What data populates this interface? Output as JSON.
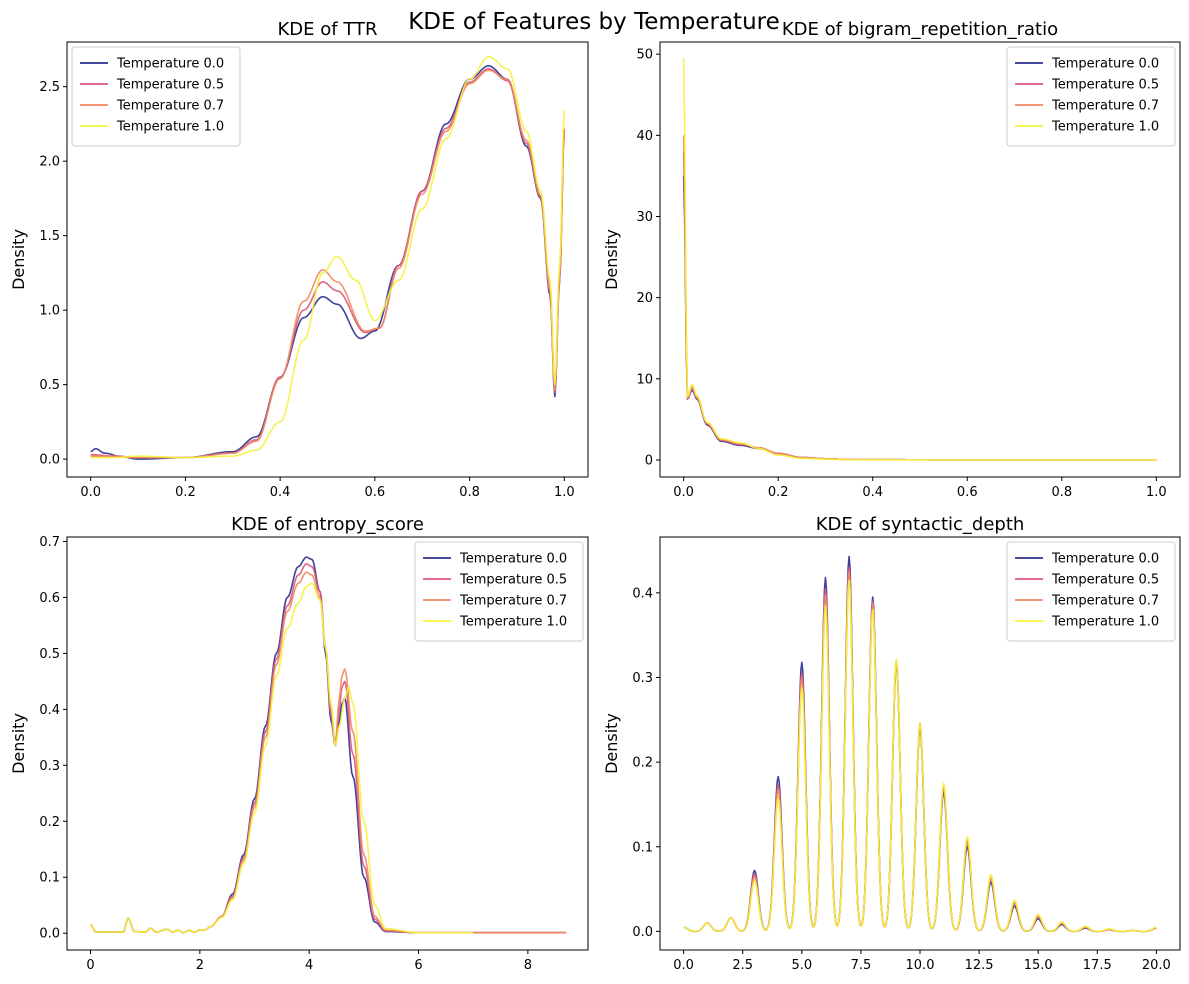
{
  "figure": {
    "title": "KDE of Features by Temperature"
  },
  "colors": {
    "Temperature 0.0": "#2b2f8f",
    "Temperature 0.5": "#d9577a",
    "Temperature 0.7": "#f2875f",
    "Temperature 1.0": "#f4f23a"
  },
  "chart_data": [
    {
      "type": "line",
      "title": "KDE of TTR",
      "xlabel": "",
      "ylabel": "Density",
      "xlim": [
        -0.05,
        1.05
      ],
      "ylim": [
        -0.12,
        2.8
      ],
      "xticks": [
        0.0,
        0.2,
        0.4,
        0.6,
        0.8,
        1.0
      ],
      "xtick_labels": [
        "0.0",
        "0.2",
        "0.4",
        "0.6",
        "0.8",
        "1.0"
      ],
      "yticks": [
        0.0,
        0.5,
        1.0,
        1.5,
        2.0,
        2.5
      ],
      "ytick_labels": [
        "0.0",
        "0.5",
        "1.0",
        "1.5",
        "2.0",
        "2.5"
      ],
      "legend_position": "top-left",
      "series": [
        {
          "name": "Temperature 0.0",
          "x": [
            0,
            0.01,
            0.03,
            0.06,
            0.1,
            0.2,
            0.3,
            0.35,
            0.4,
            0.45,
            0.49,
            0.52,
            0.57,
            0.6,
            0.65,
            0.7,
            0.75,
            0.8,
            0.84,
            0.88,
            0.92,
            0.95,
            0.97,
            0.98,
            0.99,
            1.0
          ],
          "y": [
            0.05,
            0.07,
            0.04,
            0.02,
            0.0,
            0.01,
            0.05,
            0.15,
            0.55,
            0.95,
            1.09,
            1.04,
            0.81,
            0.86,
            1.3,
            1.8,
            2.25,
            2.55,
            2.64,
            2.55,
            2.1,
            1.75,
            1.1,
            0.42,
            1.2,
            2.21
          ]
        },
        {
          "name": "Temperature 0.5",
          "x": [
            0,
            0.05,
            0.1,
            0.2,
            0.3,
            0.35,
            0.4,
            0.45,
            0.49,
            0.52,
            0.58,
            0.61,
            0.65,
            0.7,
            0.75,
            0.8,
            0.84,
            0.88,
            0.92,
            0.95,
            0.97,
            0.98,
            0.99,
            1.0
          ],
          "y": [
            0.03,
            0.02,
            0.01,
            0.01,
            0.04,
            0.13,
            0.55,
            1.0,
            1.19,
            1.13,
            0.85,
            0.88,
            1.3,
            1.8,
            2.22,
            2.53,
            2.62,
            2.54,
            2.12,
            1.76,
            1.12,
            0.45,
            1.2,
            2.2
          ]
        },
        {
          "name": "Temperature 0.7",
          "x": [
            0,
            0.05,
            0.1,
            0.2,
            0.3,
            0.35,
            0.4,
            0.45,
            0.49,
            0.52,
            0.58,
            0.61,
            0.65,
            0.7,
            0.75,
            0.8,
            0.84,
            0.88,
            0.92,
            0.95,
            0.97,
            0.98,
            0.99,
            1.0
          ],
          "y": [
            0.02,
            0.02,
            0.01,
            0.01,
            0.04,
            0.12,
            0.54,
            1.06,
            1.27,
            1.19,
            0.86,
            0.88,
            1.28,
            1.78,
            2.2,
            2.52,
            2.61,
            2.55,
            2.14,
            1.77,
            1.14,
            0.46,
            1.22,
            2.22
          ]
        },
        {
          "name": "Temperature 1.0",
          "x": [
            0,
            0.05,
            0.1,
            0.2,
            0.3,
            0.35,
            0.4,
            0.45,
            0.49,
            0.52,
            0.56,
            0.6,
            0.65,
            0.7,
            0.75,
            0.8,
            0.84,
            0.88,
            0.92,
            0.95,
            0.97,
            0.98,
            0.99,
            1.0
          ],
          "y": [
            0.01,
            0.01,
            0.02,
            0.01,
            0.02,
            0.06,
            0.25,
            0.8,
            1.25,
            1.36,
            1.2,
            0.93,
            1.2,
            1.68,
            2.15,
            2.55,
            2.7,
            2.62,
            2.2,
            1.8,
            1.2,
            0.5,
            1.3,
            2.34
          ]
        }
      ]
    },
    {
      "type": "line",
      "title": "KDE of bigram_repetition_ratio",
      "xlabel": "",
      "ylabel": "Density",
      "xlim": [
        -0.05,
        1.05
      ],
      "ylim": [
        -2.1,
        51.5
      ],
      "xticks": [
        0.0,
        0.2,
        0.4,
        0.6,
        0.8,
        1.0
      ],
      "xtick_labels": [
        "0.0",
        "0.2",
        "0.4",
        "0.6",
        "0.8",
        "1.0"
      ],
      "yticks": [
        0,
        10,
        20,
        30,
        40,
        50
      ],
      "ytick_labels": [
        "0",
        "10",
        "20",
        "30",
        "40",
        "50"
      ],
      "legend_position": "top-right",
      "series": [
        {
          "name": "Temperature 0.0",
          "x": [
            0,
            0.008,
            0.018,
            0.028,
            0.05,
            0.08,
            0.12,
            0.16,
            0.2,
            0.25,
            0.3,
            0.35,
            0.4,
            0.6,
            0.8,
            1.0
          ],
          "y": [
            35,
            7.5,
            8.6,
            7.5,
            4.3,
            2.3,
            1.8,
            1.4,
            0.8,
            0.3,
            0.15,
            0.05,
            0.03,
            0.02,
            0.02,
            0.02
          ]
        },
        {
          "name": "Temperature 0.5",
          "x": [
            0,
            0.008,
            0.018,
            0.028,
            0.05,
            0.08,
            0.12,
            0.16,
            0.2,
            0.25,
            0.3,
            0.35,
            0.4,
            0.6,
            0.8,
            1.0
          ],
          "y": [
            38,
            7.5,
            8.8,
            7.6,
            4.4,
            2.4,
            1.9,
            1.5,
            0.8,
            0.3,
            0.15,
            0.05,
            0.03,
            0.02,
            0.02,
            0.02
          ]
        },
        {
          "name": "Temperature 0.7",
          "x": [
            0,
            0.008,
            0.018,
            0.028,
            0.05,
            0.08,
            0.12,
            0.16,
            0.2,
            0.25,
            0.3,
            0.35,
            0.4,
            0.6,
            0.8,
            1.0
          ],
          "y": [
            40,
            7.6,
            9.0,
            7.7,
            4.5,
            2.5,
            2.0,
            1.5,
            0.8,
            0.3,
            0.15,
            0.05,
            0.03,
            0.02,
            0.02,
            0.02
          ]
        },
        {
          "name": "Temperature 1.0",
          "x": [
            0,
            0.008,
            0.018,
            0.028,
            0.05,
            0.08,
            0.12,
            0.16,
            0.2,
            0.25,
            0.3,
            0.35,
            0.4,
            0.6,
            0.8,
            1.0
          ],
          "y": [
            49.5,
            7.8,
            9.3,
            7.9,
            4.6,
            2.6,
            2.1,
            1.4,
            0.6,
            0.2,
            0.1,
            0.04,
            0.02,
            0.02,
            0.02,
            0.02
          ]
        }
      ]
    },
    {
      "type": "line",
      "title": "KDE of entropy_score",
      "xlabel": "",
      "ylabel": "Density",
      "xlim": [
        -0.43,
        9.1
      ],
      "ylim": [
        -0.03,
        0.708
      ],
      "xticks": [
        0,
        2,
        4,
        6,
        8
      ],
      "xtick_labels": [
        "0",
        "2",
        "4",
        "6",
        "8"
      ],
      "yticks": [
        0.0,
        0.1,
        0.2,
        0.3,
        0.4,
        0.5,
        0.6,
        0.7
      ],
      "ytick_labels": [
        "0.0",
        "0.1",
        "0.2",
        "0.3",
        "0.4",
        "0.5",
        "0.6",
        "0.7"
      ],
      "legend_position": "top-right",
      "series": [
        {
          "name": "Temperature 0.0",
          "x": [
            0,
            0.1,
            0.6,
            0.69,
            0.8,
            1.0,
            1.1,
            1.2,
            1.4,
            1.5,
            1.6,
            1.7,
            1.8,
            1.9,
            2.0,
            2.1,
            2.2,
            2.4,
            2.6,
            2.8,
            3.0,
            3.2,
            3.4,
            3.6,
            3.8,
            3.95,
            4.05,
            4.2,
            4.3,
            4.4,
            4.48,
            4.55,
            4.6,
            4.65,
            4.8,
            5.0,
            5.2,
            5.4,
            6.0,
            8.7
          ],
          "y": [
            0.015,
            0.002,
            0.002,
            0.027,
            0.003,
            0.002,
            0.009,
            0.002,
            0.007,
            0.002,
            0.005,
            0.001,
            0.005,
            0.002,
            0.006,
            0.006,
            0.012,
            0.03,
            0.07,
            0.14,
            0.24,
            0.37,
            0.5,
            0.6,
            0.655,
            0.672,
            0.668,
            0.61,
            0.5,
            0.38,
            0.335,
            0.38,
            0.41,
            0.42,
            0.28,
            0.1,
            0.02,
            0.003,
            0.001,
            0.001
          ]
        },
        {
          "name": "Temperature 0.5",
          "x": [
            0,
            0.1,
            0.6,
            0.69,
            0.8,
            1.0,
            1.1,
            1.2,
            1.4,
            1.5,
            1.6,
            1.7,
            1.8,
            1.9,
            2.0,
            2.1,
            2.2,
            2.4,
            2.6,
            2.8,
            3.0,
            3.2,
            3.4,
            3.6,
            3.8,
            3.95,
            4.05,
            4.2,
            4.3,
            4.4,
            4.48,
            4.55,
            4.6,
            4.65,
            4.8,
            5.0,
            5.2,
            5.4,
            6.0,
            8.7
          ],
          "y": [
            0.015,
            0.002,
            0.002,
            0.027,
            0.003,
            0.002,
            0.009,
            0.002,
            0.007,
            0.002,
            0.005,
            0.001,
            0.005,
            0.002,
            0.006,
            0.006,
            0.012,
            0.03,
            0.066,
            0.135,
            0.232,
            0.36,
            0.49,
            0.585,
            0.64,
            0.66,
            0.655,
            0.61,
            0.51,
            0.39,
            0.335,
            0.4,
            0.44,
            0.45,
            0.32,
            0.12,
            0.025,
            0.004,
            0.001,
            0.001
          ]
        },
        {
          "name": "Temperature 0.7",
          "x": [
            0,
            0.1,
            0.6,
            0.69,
            0.8,
            1.0,
            1.1,
            1.2,
            1.4,
            1.5,
            1.6,
            1.7,
            1.8,
            1.9,
            2.0,
            2.1,
            2.2,
            2.4,
            2.6,
            2.8,
            3.0,
            3.2,
            3.4,
            3.6,
            3.8,
            3.95,
            4.05,
            4.2,
            4.3,
            4.4,
            4.48,
            4.55,
            4.6,
            4.65,
            4.8,
            5.0,
            5.2,
            5.4,
            6.0,
            8.7
          ],
          "y": [
            0.015,
            0.002,
            0.002,
            0.027,
            0.003,
            0.002,
            0.009,
            0.002,
            0.007,
            0.002,
            0.005,
            0.001,
            0.005,
            0.002,
            0.006,
            0.006,
            0.012,
            0.03,
            0.063,
            0.13,
            0.225,
            0.35,
            0.48,
            0.575,
            0.625,
            0.645,
            0.64,
            0.6,
            0.51,
            0.4,
            0.34,
            0.42,
            0.46,
            0.472,
            0.36,
            0.14,
            0.03,
            0.005,
            0.001,
            0.001
          ]
        },
        {
          "name": "Temperature 1.0",
          "x": [
            0,
            0.1,
            0.6,
            0.69,
            0.8,
            1.0,
            1.1,
            1.2,
            1.4,
            1.5,
            1.6,
            1.7,
            1.8,
            1.9,
            2.0,
            2.1,
            2.2,
            2.4,
            2.6,
            2.8,
            3.0,
            3.2,
            3.4,
            3.6,
            3.8,
            3.95,
            4.05,
            4.2,
            4.3,
            4.4,
            4.48,
            4.55,
            4.65,
            4.72,
            4.8,
            5.0,
            5.2,
            5.4,
            6.0,
            7.0
          ],
          "y": [
            0.015,
            0.002,
            0.002,
            0.027,
            0.003,
            0.002,
            0.009,
            0.002,
            0.007,
            0.002,
            0.005,
            0.001,
            0.005,
            0.002,
            0.006,
            0.006,
            0.012,
            0.028,
            0.06,
            0.125,
            0.215,
            0.335,
            0.46,
            0.545,
            0.59,
            0.62,
            0.625,
            0.595,
            0.51,
            0.41,
            0.335,
            0.37,
            0.42,
            0.44,
            0.41,
            0.2,
            0.05,
            0.008,
            0.001,
            0.001
          ]
        }
      ]
    },
    {
      "type": "line",
      "title": "KDE of syntactic_depth",
      "xlabel": "",
      "ylabel": "Density",
      "xlim": [
        -1.0,
        21.0
      ],
      "ylim": [
        -0.022,
        0.466
      ],
      "xticks": [
        0.0,
        2.5,
        5.0,
        7.5,
        10.0,
        12.5,
        15.0,
        17.5,
        20.0
      ],
      "xtick_labels": [
        "0.0",
        "2.5",
        "5.0",
        "7.5",
        "10.0",
        "12.5",
        "15.0",
        "17.5",
        "20.0"
      ],
      "yticks": [
        0.0,
        0.1,
        0.2,
        0.3,
        0.4
      ],
      "ytick_labels": [
        "0.0",
        "0.1",
        "0.2",
        "0.3",
        "0.4"
      ],
      "legend_position": "top-right",
      "peak_locations": [
        0,
        1,
        2,
        3,
        4,
        5,
        6,
        7,
        8,
        9,
        10,
        11,
        12,
        13,
        14,
        15,
        16,
        17,
        18,
        19,
        20
      ],
      "series": [
        {
          "name": "Temperature 0.0",
          "peaks": [
            0.005,
            0.01,
            0.016,
            0.072,
            0.183,
            0.318,
            0.418,
            0.443,
            0.395,
            0.318,
            0.24,
            0.165,
            0.1,
            0.058,
            0.03,
            0.015,
            0.008,
            0.004,
            0.002,
            0.001,
            0.004
          ]
        },
        {
          "name": "Temperature 0.5",
          "peaks": [
            0.005,
            0.01,
            0.016,
            0.068,
            0.173,
            0.305,
            0.405,
            0.43,
            0.39,
            0.32,
            0.244,
            0.17,
            0.105,
            0.062,
            0.033,
            0.017,
            0.009,
            0.005,
            0.002,
            0.001,
            0.004
          ]
        },
        {
          "name": "Temperature 0.7",
          "peaks": [
            0.005,
            0.01,
            0.016,
            0.065,
            0.168,
            0.3,
            0.398,
            0.425,
            0.388,
            0.32,
            0.246,
            0.172,
            0.108,
            0.064,
            0.034,
            0.018,
            0.01,
            0.005,
            0.002,
            0.001,
            0.004
          ]
        },
        {
          "name": "Temperature 1.0",
          "peaks": [
            0.005,
            0.01,
            0.016,
            0.06,
            0.158,
            0.288,
            0.385,
            0.415,
            0.38,
            0.322,
            0.245,
            0.175,
            0.112,
            0.067,
            0.037,
            0.02,
            0.011,
            0.006,
            0.003,
            0.001,
            0.005
          ]
        }
      ]
    }
  ]
}
